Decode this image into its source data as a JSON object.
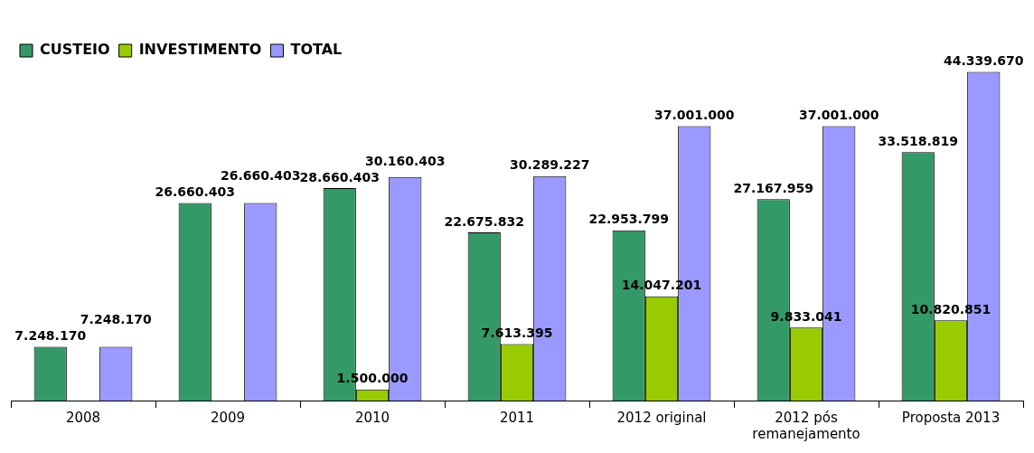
{
  "chart_data": {
    "type": "bar",
    "categories": [
      "2008",
      "2009",
      "2010",
      "2011",
      "2012 original",
      "2012 pós remanejamento",
      "Proposta 2013"
    ],
    "series": [
      {
        "name": "CUSTEIO",
        "color": "#339966",
        "values": [
          7248170,
          26660403,
          28660403,
          22675832,
          22953799,
          27167959,
          33518819
        ],
        "value_labels": [
          "7.248.170",
          "26.660.403",
          "28.660.403",
          "22.675.832",
          "22.953.799",
          "27.167.959",
          "33.518.819"
        ]
      },
      {
        "name": "INVESTIMENTO",
        "color": "#99cc00",
        "values": [
          null,
          null,
          1500000,
          7613395,
          14047201,
          9833041,
          10820851
        ],
        "value_labels": [
          null,
          null,
          "1.500.000",
          "7.613.395",
          "14.047.201",
          "9.833.041",
          "10.820.851"
        ]
      },
      {
        "name": "TOTAL",
        "color": "#9999ff",
        "values": [
          7248170,
          26660403,
          30160403,
          30289227,
          37001000,
          37001000,
          44339670
        ],
        "value_labels": [
          "7.248.170",
          "26.660.403",
          "30.160.403",
          "30.289.227",
          "37.001.000",
          "37.001.000",
          "44.339.670"
        ]
      }
    ],
    "legend": "top left",
    "grid": false
  }
}
